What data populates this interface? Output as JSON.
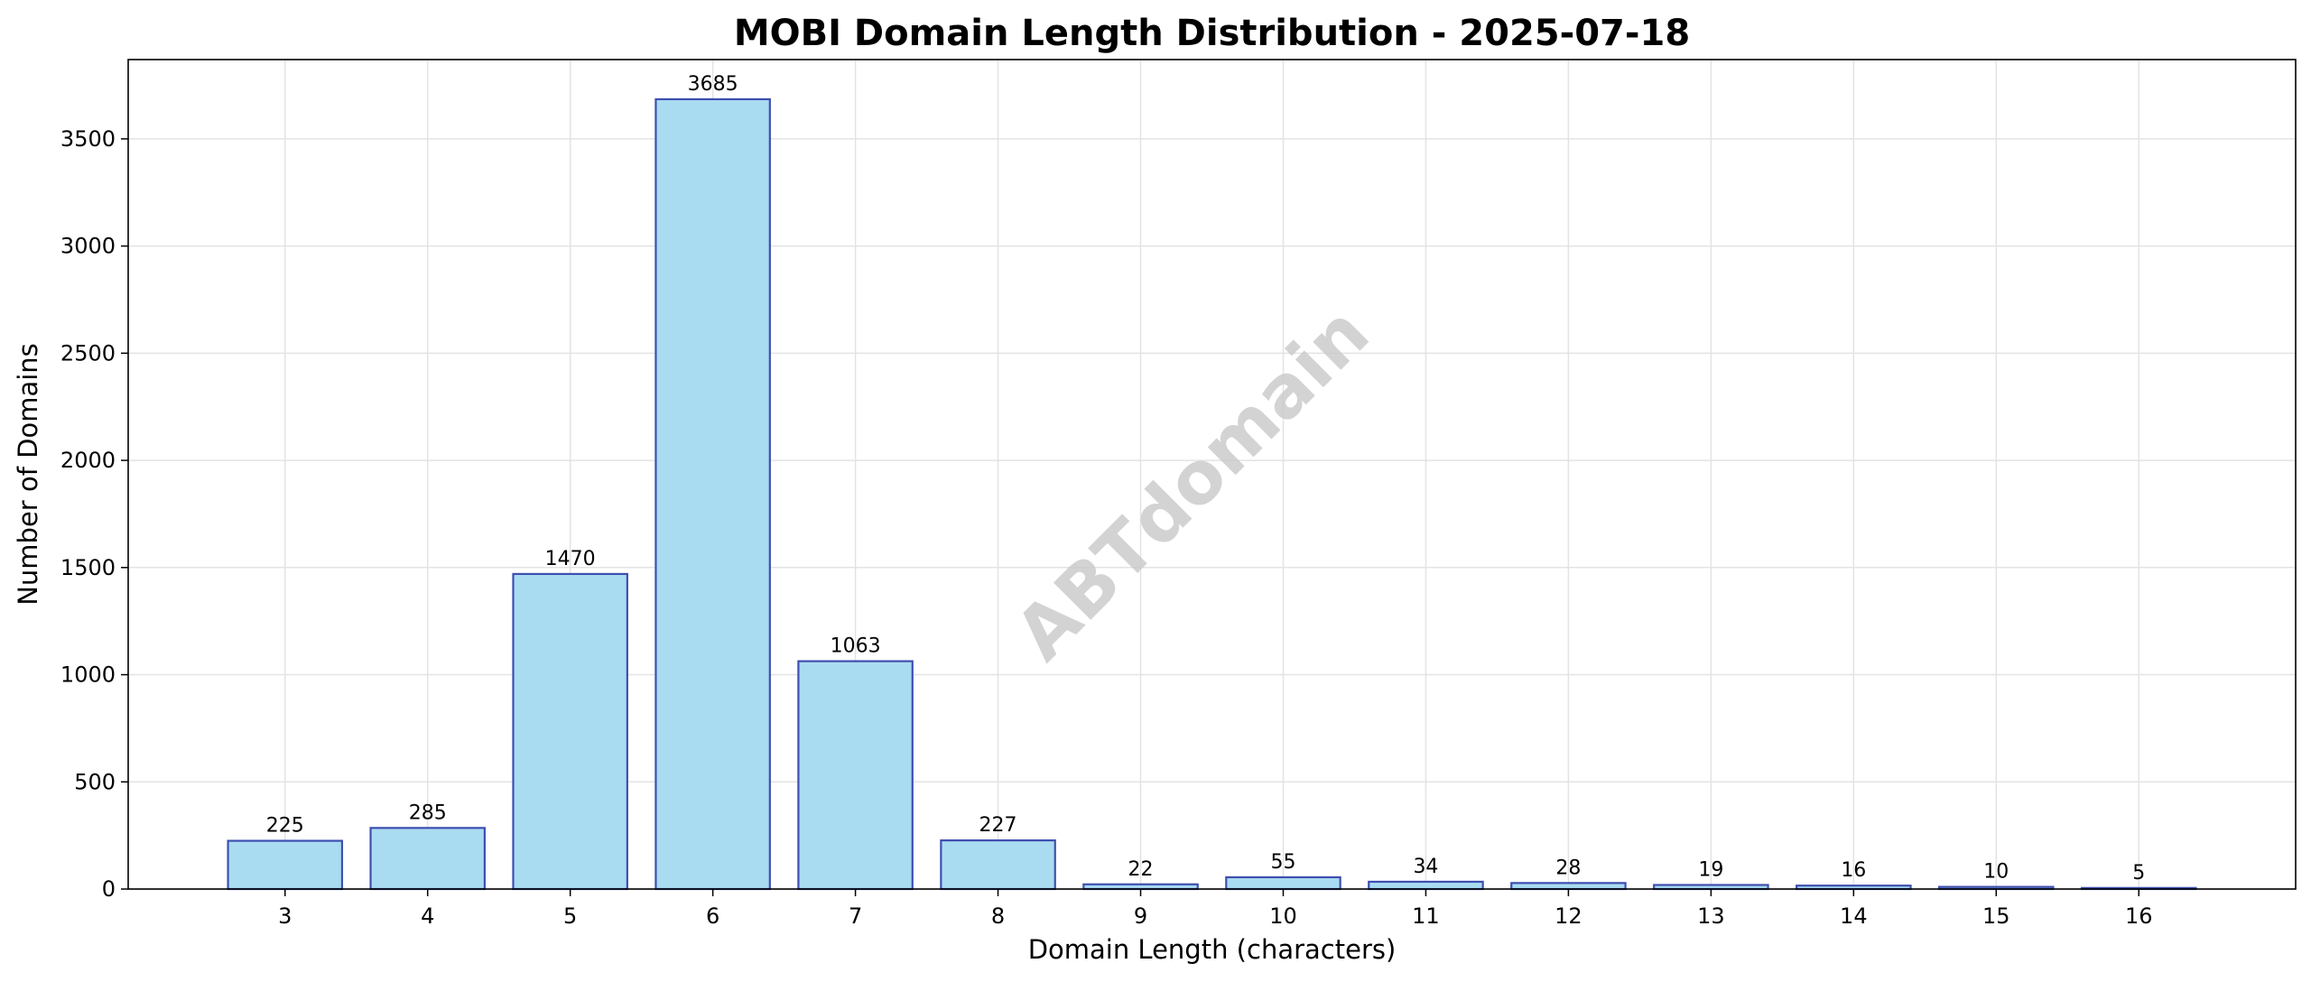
{
  "chart_data": {
    "type": "bar",
    "title": "MOBI Domain Length Distribution - 2025-07-18",
    "xlabel": "Domain Length (characters)",
    "ylabel": "Number of Domains",
    "categories": [
      "3",
      "4",
      "5",
      "6",
      "7",
      "8",
      "9",
      "10",
      "11",
      "12",
      "13",
      "14",
      "15",
      "16"
    ],
    "values": [
      225,
      285,
      1470,
      3685,
      1063,
      227,
      22,
      55,
      34,
      28,
      19,
      16,
      10,
      5
    ],
    "data_labels": [
      "225",
      "285",
      "1470",
      "3685",
      "1063",
      "227",
      "22",
      "55",
      "34",
      "28",
      "19",
      "16",
      "10",
      "5"
    ],
    "yticks": [
      0,
      500,
      1000,
      1500,
      2000,
      2500,
      3000,
      3500
    ],
    "ytick_labels": [
      "0",
      "500",
      "1000",
      "1500",
      "2000",
      "2500",
      "3000",
      "3500"
    ],
    "ylim": [
      0,
      3870
    ],
    "xlim": [
      1.9,
      17.1
    ],
    "grid": true,
    "watermark": "ABTdomain",
    "colors": {
      "bar_fill": "#a9dcf0",
      "bar_edge": "#3f4fb0",
      "grid": "#e3e3e3",
      "watermark": "#c8c8c8"
    }
  }
}
